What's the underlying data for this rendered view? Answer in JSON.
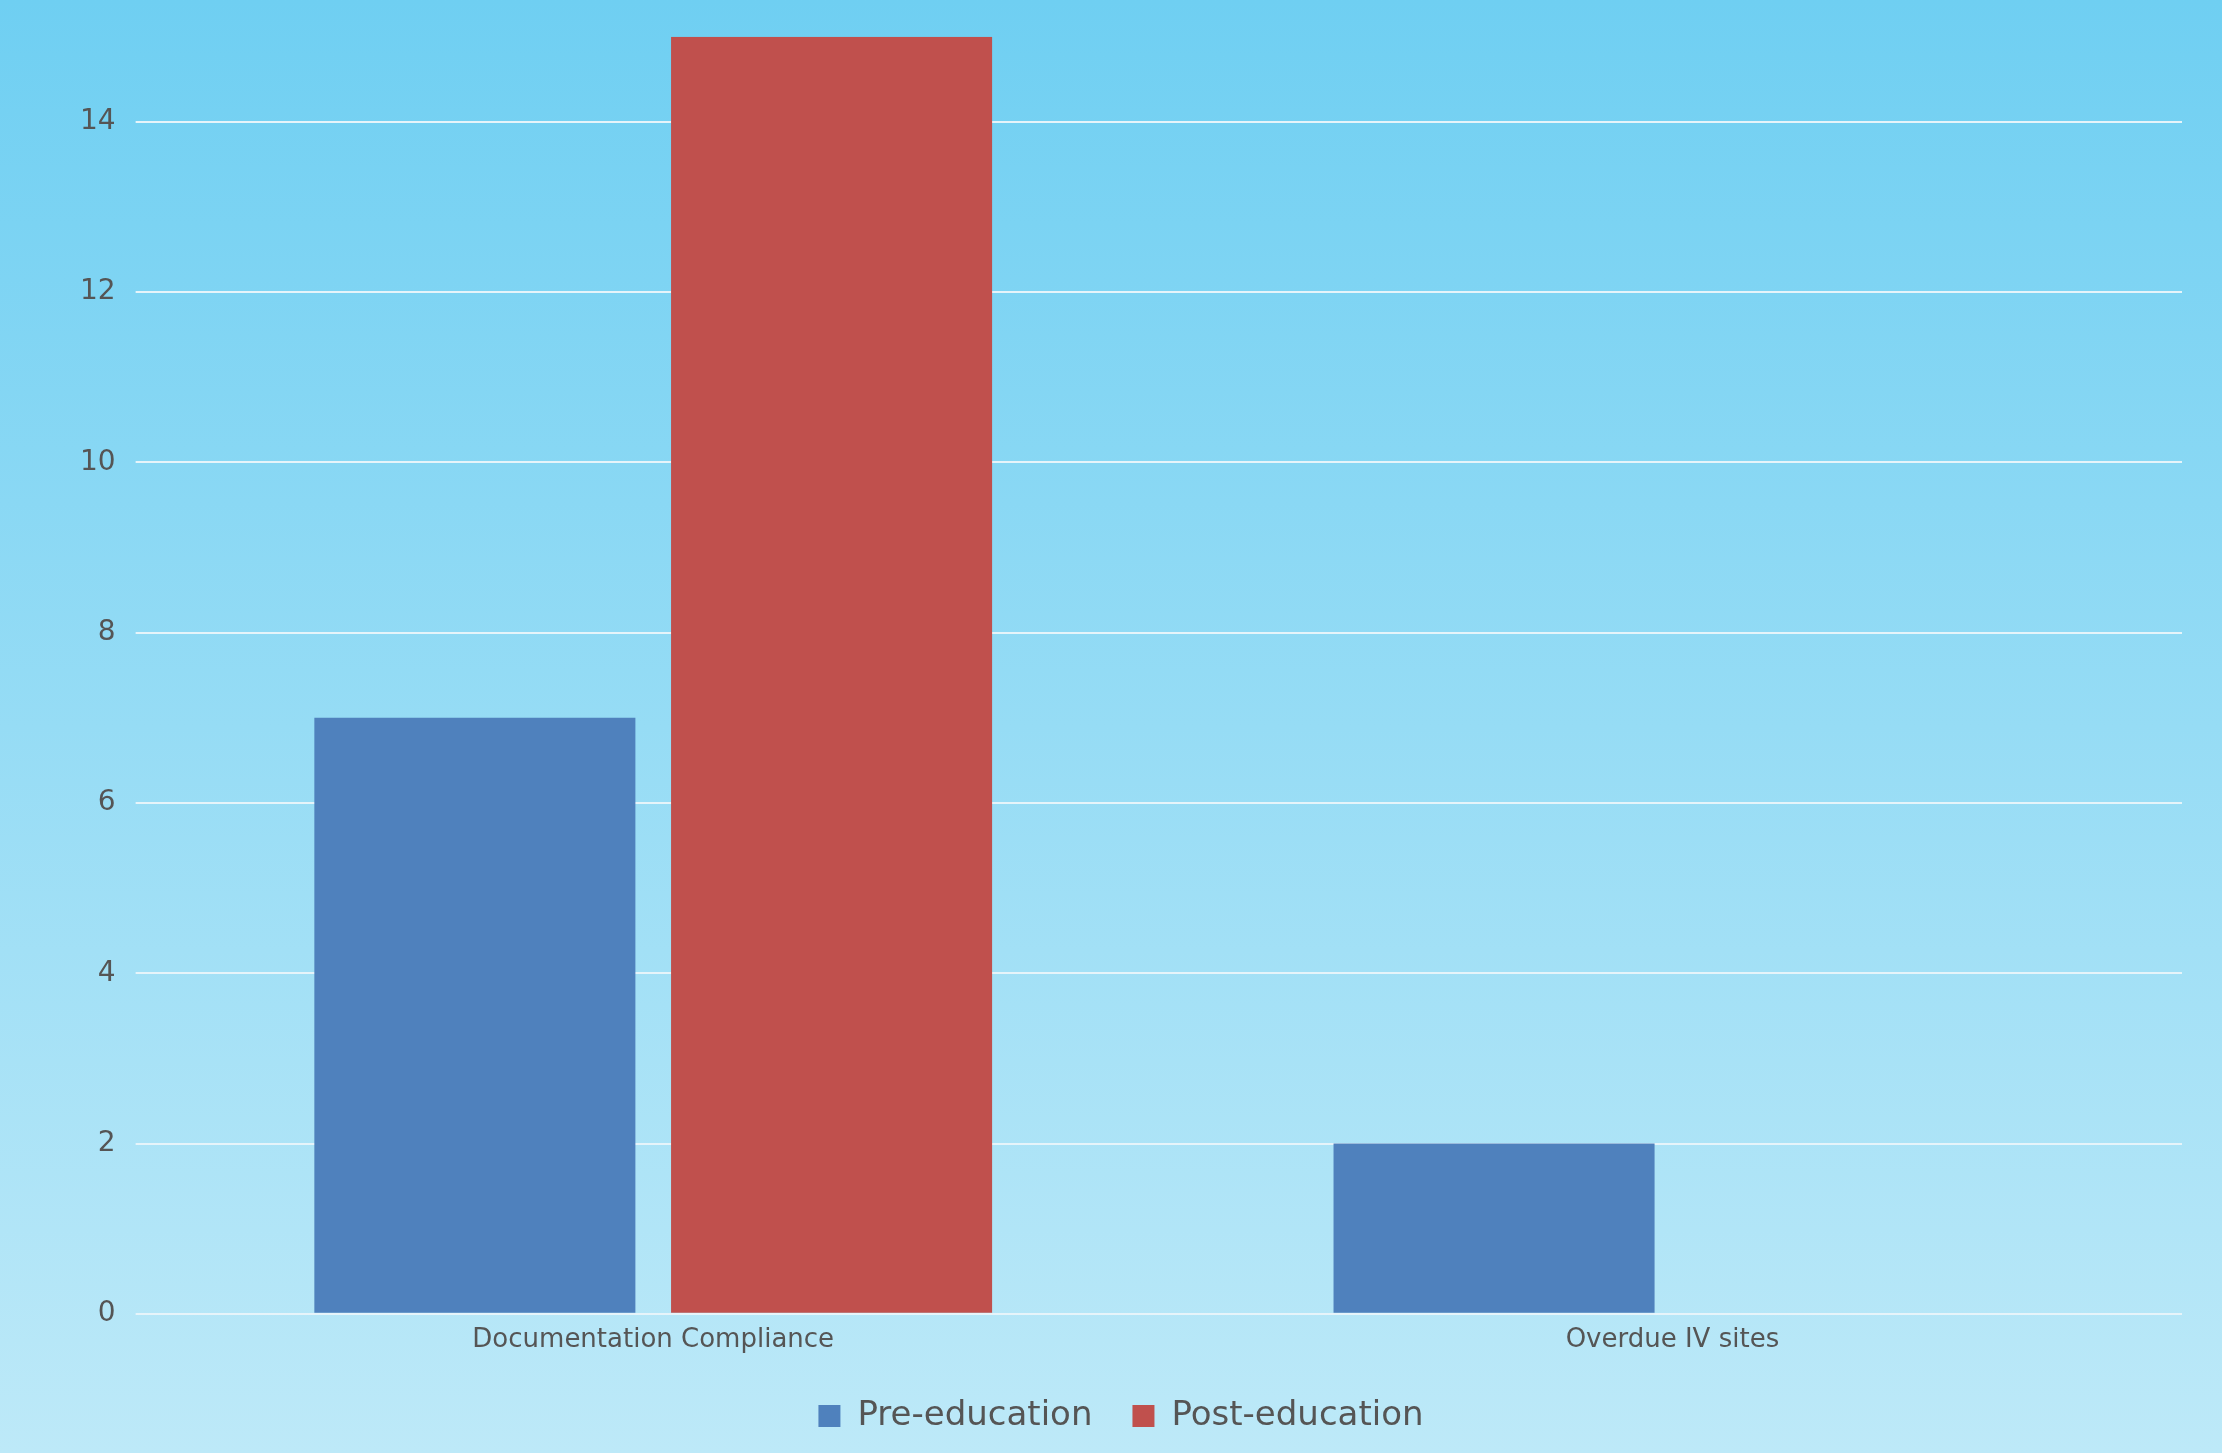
{
  "chart_data": {
    "type": "bar",
    "categories": [
      "Documentation Compliance",
      "Overdue IV sites"
    ],
    "series": [
      {
        "name": "Pre-education",
        "color": "#4f81bd",
        "values": [
          7,
          2
        ]
      },
      {
        "name": "Post-education",
        "color": "#c0504d",
        "values": [
          15,
          null
        ]
      }
    ],
    "ylim": [
      0,
      15
    ],
    "yticks": [
      0,
      2,
      4,
      6,
      8,
      10,
      12,
      14
    ],
    "grid": "y",
    "legend": "bottom"
  }
}
